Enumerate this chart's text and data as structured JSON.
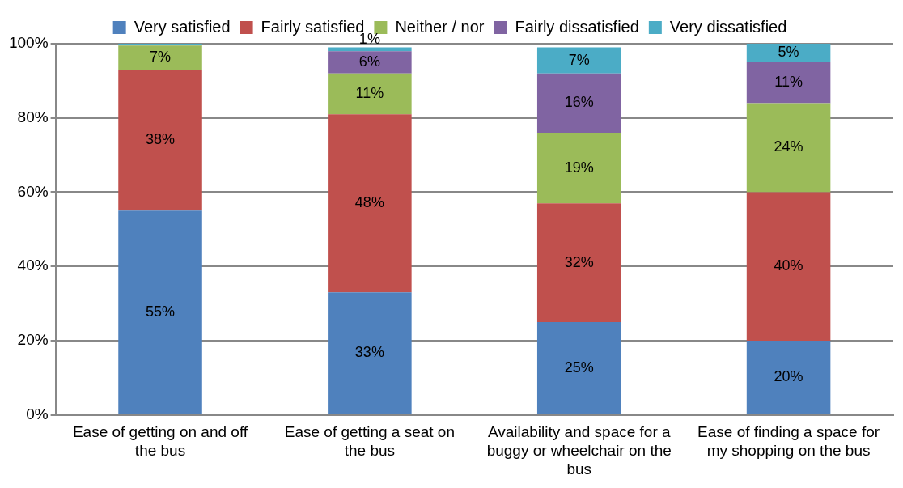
{
  "chart_data": {
    "type": "bar",
    "stacked": true,
    "categories": [
      "Ease of getting on and off the bus",
      "Ease of getting a seat on the bus",
      "Availability and space for a buggy or wheelchair on the bus",
      "Ease of finding a space for my shopping on the bus"
    ],
    "series": [
      {
        "name": "Very satisfied",
        "color": "#4f81bd",
        "values": [
          55,
          33,
          25,
          20
        ],
        "value_labels": [
          "55%",
          "33%",
          "25%",
          "20%"
        ]
      },
      {
        "name": "Fairly satisfied",
        "color": "#c0504d",
        "values": [
          38,
          48,
          32,
          40
        ],
        "value_labels": [
          "38%",
          "48%",
          "32%",
          "40%"
        ]
      },
      {
        "name": "Neither / nor",
        "color": "#9bbb59",
        "values": [
          6.5,
          11,
          19,
          24
        ],
        "value_labels": [
          "7%",
          "11%",
          "19%",
          "24%"
        ]
      },
      {
        "name": "Fairly dissatisfied",
        "color": "#8064a2",
        "values": [
          0.3,
          6,
          16,
          11
        ],
        "value_labels": [
          null,
          "6%",
          "16%",
          "11%"
        ]
      },
      {
        "name": "Very dissatisfied",
        "color": "#4bacc6",
        "values": [
          0.2,
          1,
          7,
          5
        ],
        "value_labels": [
          null,
          "1%",
          "7%",
          "5%"
        ]
      }
    ],
    "ylim": [
      0,
      100
    ],
    "yticks": [
      {
        "value": 0,
        "label": "0%"
      },
      {
        "value": 20,
        "label": "20%"
      },
      {
        "value": 40,
        "label": "40%"
      },
      {
        "value": 60,
        "label": "60%"
      },
      {
        "value": 80,
        "label": "80%"
      },
      {
        "value": 100,
        "label": "100%"
      }
    ],
    "grid": "y",
    "legend": "top"
  }
}
